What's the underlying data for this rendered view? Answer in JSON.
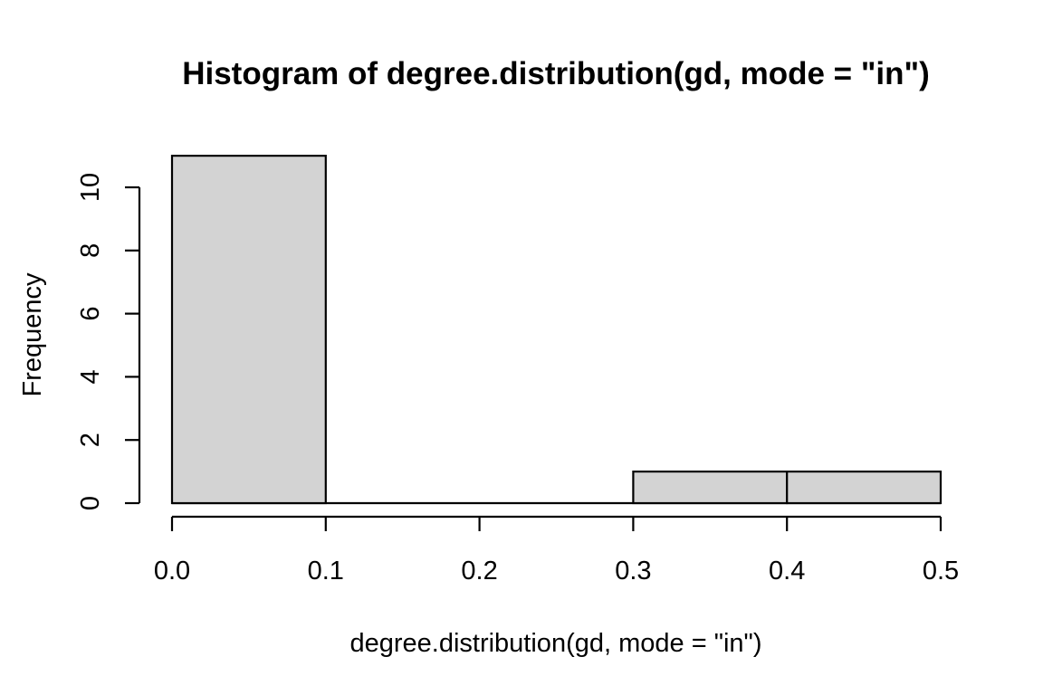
{
  "chart_data": {
    "type": "bar",
    "subtype": "histogram",
    "title": "Histogram of degree.distribution(gd, mode = \"in\")",
    "xlabel": "degree.distribution(gd, mode = \"in\")",
    "ylabel": "Frequency",
    "breaks": [
      0.0,
      0.1,
      0.2,
      0.3,
      0.4,
      0.5
    ],
    "counts": [
      11,
      0,
      0,
      1,
      1
    ],
    "xlim": [
      0.0,
      0.5
    ],
    "ylim": [
      0,
      11
    ],
    "x_ticks": [
      0.0,
      0.1,
      0.2,
      0.3,
      0.4,
      0.5
    ],
    "x_tick_labels": [
      "0.0",
      "0.1",
      "0.2",
      "0.3",
      "0.4",
      "0.5"
    ],
    "y_ticks": [
      0,
      2,
      4,
      6,
      8,
      10
    ],
    "y_tick_labels": [
      "0",
      "2",
      "4",
      "6",
      "8",
      "10"
    ],
    "grid": false,
    "legend": null,
    "colors": {
      "bar_fill": "#d3d3d3",
      "bar_stroke": "#000000",
      "axis": "#000000",
      "text": "#000000",
      "background": "#ffffff"
    }
  }
}
